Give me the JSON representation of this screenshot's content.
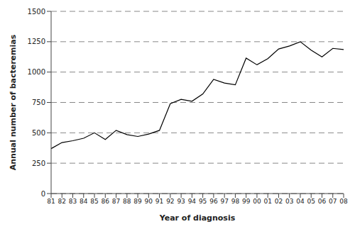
{
  "chart_data": {
    "type": "line",
    "x_label": "Year of diagnosis",
    "y_label": "Annual number of bacteremias",
    "categories": [
      "81",
      "82",
      "83",
      "84",
      "85",
      "86",
      "87",
      "88",
      "89",
      "90",
      "91",
      "92",
      "93",
      "94",
      "95",
      "96",
      "97",
      "98",
      "99",
      "00",
      "01",
      "02",
      "03",
      "04",
      "05",
      "06",
      "07",
      "08"
    ],
    "values": [
      370,
      420,
      435,
      455,
      500,
      445,
      520,
      485,
      470,
      490,
      520,
      740,
      775,
      760,
      820,
      940,
      910,
      895,
      1115,
      1060,
      1110,
      1190,
      1215,
      1250,
      1180,
      1125,
      1195,
      1185
    ],
    "color": "#000000",
    "ylim": [
      0,
      1500
    ],
    "yticks": [
      0,
      250,
      500,
      750,
      1000,
      1250,
      1500
    ],
    "grid": true
  }
}
